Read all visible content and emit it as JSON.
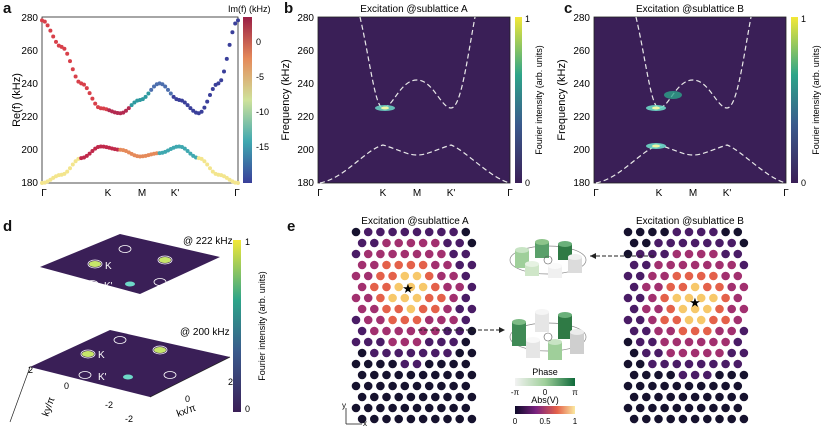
{
  "panels": {
    "a": "a",
    "b": "b",
    "c": "c",
    "d": "d",
    "e": "e"
  },
  "panel_a": {
    "ylabel": "Re(f) (kHz)",
    "colorbar_label": "Im(f) (kHz)",
    "colorbar_ticks": [
      "0",
      "-5",
      "-10",
      "-15"
    ],
    "yticks": [
      "280",
      "260",
      "240",
      "220",
      "200",
      "180"
    ],
    "xticks": [
      "Γ",
      "K",
      "M",
      "K'",
      "Γ"
    ]
  },
  "panel_b": {
    "title": "Excitation @sublattice A",
    "ylabel": "Frequency (kHz)",
    "colorbar_label": "Fourier intensity (arb. units)",
    "colorbar_ticks": [
      "1",
      "0"
    ],
    "yticks": [
      "280",
      "260",
      "240",
      "220",
      "200",
      "180"
    ],
    "xticks": [
      "Γ",
      "K",
      "M",
      "K'",
      "Γ"
    ]
  },
  "panel_c": {
    "title": "Excitation @sublattice B",
    "ylabel": "Frequency (kHz)",
    "colorbar_label": "Fourier intensity (arb. units)",
    "colorbar_ticks": [
      "1",
      "0"
    ],
    "yticks": [
      "280",
      "260",
      "240",
      "220",
      "200",
      "180"
    ],
    "xticks": [
      "Γ",
      "K",
      "M",
      "K'",
      "Γ"
    ]
  },
  "panel_d": {
    "top_label": "@ 222 kHz",
    "bottom_label": "@ 200 kHz",
    "K_label": "K",
    "Kp_label": "K'",
    "colorbar_label": "Fourier intensity (arb. units)",
    "colorbar_ticks": [
      "1",
      "0"
    ],
    "ky_label": "ky/π",
    "kx_label": "kx/π",
    "ky_ticks": [
      "2",
      "0",
      "-2"
    ],
    "kx_ticks": [
      "-2",
      "0",
      "2"
    ]
  },
  "panel_e": {
    "title_a": "Excitation @sublattice A",
    "title_b": "Excitation @sublattice B",
    "phase_label": "Phase",
    "phase_ticks": [
      "-π",
      "0",
      "π"
    ],
    "abs_label": "Abs(V)",
    "abs_ticks": [
      "0",
      "0.5",
      "1"
    ],
    "axis_x": "x",
    "axis_y": "y"
  },
  "colors": {
    "background_dark": "#3a1f57",
    "band_low": "#f3e58d",
    "band_high": "#c0284a",
    "dashed": "#e8e8e8"
  },
  "chart_data": [
    {
      "type": "scatter",
      "panel": "a",
      "ylabel": "Re(f) (kHz)",
      "colorbar": "Im(f) (kHz)",
      "ylim": [
        180,
        280
      ],
      "x_ticks": [
        "Γ",
        "K",
        "M",
        "K'",
        "Γ"
      ],
      "series": [
        {
          "x": [
            0.0,
            0.1,
            0.2,
            0.3,
            0.4,
            0.5,
            0.6,
            0.7,
            0.8,
            0.9,
            1.0
          ],
          "y": [
            278,
            262,
            240,
            225,
            222,
            230,
            240,
            230,
            222,
            240,
            278
          ]
        },
        {
          "x": [
            0.0,
            0.1,
            0.2,
            0.3,
            0.4,
            0.5,
            0.6,
            0.7,
            0.8,
            0.9,
            1.0
          ],
          "y": [
            180,
            185,
            195,
            202,
            200,
            196,
            198,
            202,
            195,
            185,
            180
          ]
        }
      ]
    }
  ]
}
